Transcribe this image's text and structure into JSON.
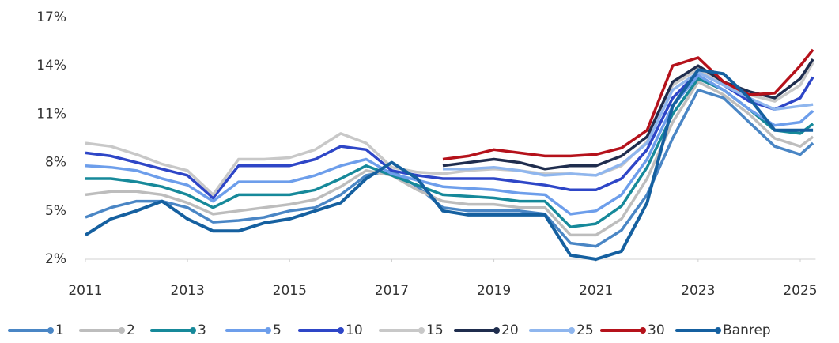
{
  "chart_data": {
    "type": "line",
    "x": [
      2011,
      2011.5,
      2012,
      2012.5,
      2013,
      2013.5,
      2014,
      2014.5,
      2015,
      2015.5,
      2016,
      2016.5,
      2017,
      2017.5,
      2018,
      2018.5,
      2019,
      2019.5,
      2020,
      2020.5,
      2021,
      2021.5,
      2022,
      2022.5,
      2023,
      2023.5,
      2024,
      2024.5,
      2025,
      2025.25
    ],
    "xlim": [
      2011,
      2025.3
    ],
    "xticks": [
      2011,
      2013,
      2015,
      2017,
      2019,
      2021,
      2023,
      2025
    ],
    "ylim": [
      2,
      17
    ],
    "yticks": [
      {
        "value": 2,
        "label": "2%"
      },
      {
        "value": 5,
        "label": "5%"
      },
      {
        "value": 8,
        "label": "8%"
      },
      {
        "value": 11,
        "label": "11%"
      },
      {
        "value": 14,
        "label": "14%"
      },
      {
        "value": 17,
        "label": "17%"
      }
    ],
    "grid": false,
    "legend": "bottom",
    "series": [
      {
        "name": "1",
        "color": "#4a86c5",
        "values": [
          4.6,
          5.2,
          5.6,
          5.6,
          5.2,
          4.3,
          4.4,
          4.6,
          5.0,
          5.2,
          6.0,
          7.2,
          7.5,
          6.5,
          5.2,
          5.0,
          5.0,
          5.0,
          4.8,
          3.0,
          2.8,
          3.8,
          6.0,
          9.5,
          12.5,
          12.0,
          10.5,
          9.0,
          8.5,
          9.2
        ]
      },
      {
        "name": "2",
        "color": "#bdbdbd",
        "values": [
          6.0,
          6.2,
          6.2,
          6.0,
          5.5,
          4.8,
          5.0,
          5.2,
          5.4,
          5.7,
          6.5,
          7.5,
          7.2,
          6.3,
          5.6,
          5.4,
          5.4,
          5.2,
          5.2,
          3.5,
          3.5,
          4.5,
          7.0,
          10.5,
          13.0,
          12.2,
          11.0,
          9.5,
          9.0,
          9.6
        ]
      },
      {
        "name": "3",
        "color": "#16899a",
        "values": [
          7.0,
          7.0,
          6.8,
          6.5,
          6.0,
          5.2,
          6.0,
          6.0,
          6.0,
          6.3,
          7.0,
          7.8,
          7.2,
          6.6,
          6.0,
          5.9,
          5.8,
          5.6,
          5.6,
          4.0,
          4.2,
          5.3,
          7.7,
          11.0,
          13.2,
          12.5,
          11.3,
          10.0,
          9.8,
          10.4
        ]
      },
      {
        "name": "5",
        "color": "#6d9eeb",
        "values": [
          7.8,
          7.7,
          7.5,
          7.0,
          6.6,
          5.6,
          6.8,
          6.8,
          6.8,
          7.2,
          7.8,
          8.2,
          7.3,
          6.9,
          6.5,
          6.4,
          6.3,
          6.1,
          6.0,
          4.8,
          5.0,
          6.0,
          8.2,
          11.5,
          13.4,
          12.5,
          11.3,
          10.3,
          10.5,
          11.2
        ]
      },
      {
        "name": "10",
        "color": "#2e46c7",
        "values": [
          8.6,
          8.4,
          8.0,
          7.6,
          7.2,
          5.8,
          7.8,
          7.8,
          7.8,
          8.2,
          9.0,
          8.8,
          7.5,
          7.2,
          7.0,
          7.0,
          7.0,
          6.8,
          6.6,
          6.3,
          6.3,
          7.0,
          8.8,
          12.0,
          13.6,
          12.8,
          11.8,
          11.3,
          12.0,
          13.3
        ]
      },
      {
        "name": "15",
        "color": "#c8c8c8",
        "values": [
          9.2,
          9.0,
          8.5,
          7.9,
          7.5,
          6.0,
          8.2,
          8.2,
          8.3,
          8.8,
          9.8,
          9.2,
          7.7,
          7.4,
          7.3,
          7.5,
          7.6,
          7.5,
          7.3,
          7.3,
          7.2,
          7.8,
          9.3,
          12.8,
          13.8,
          13.0,
          12.2,
          11.8,
          12.8,
          14.2
        ]
      },
      {
        "name": "20",
        "color": "#1f2d4e",
        "values": [
          null,
          null,
          null,
          null,
          null,
          null,
          null,
          null,
          null,
          null,
          null,
          null,
          null,
          null,
          7.8,
          8.0,
          8.2,
          8.0,
          7.6,
          7.8,
          7.8,
          8.4,
          9.6,
          13.0,
          14.0,
          13.0,
          12.4,
          12.0,
          13.2,
          14.4
        ]
      },
      {
        "name": "25",
        "color": "#8fb6ee",
        "values": [
          null,
          null,
          null,
          null,
          null,
          null,
          null,
          null,
          null,
          null,
          null,
          null,
          null,
          null,
          7.6,
          7.6,
          7.7,
          7.5,
          7.2,
          7.3,
          7.2,
          7.9,
          9.2,
          12.5,
          13.6,
          12.8,
          12.0,
          11.3,
          11.5,
          11.6
        ]
      },
      {
        "name": "30",
        "color": "#b5121b",
        "values": [
          null,
          null,
          null,
          null,
          null,
          null,
          null,
          null,
          null,
          null,
          null,
          null,
          null,
          null,
          8.2,
          8.4,
          8.8,
          8.6,
          8.4,
          8.4,
          8.5,
          8.9,
          10.0,
          14.0,
          14.5,
          13.0,
          12.2,
          12.3,
          14.0,
          15.0
        ]
      },
      {
        "name": "Banrep",
        "color": "#1560a0",
        "values": [
          3.5,
          4.5,
          5.0,
          5.6,
          4.5,
          3.75,
          3.75,
          4.25,
          4.5,
          5.0,
          5.5,
          7.0,
          8.0,
          7.0,
          5.0,
          4.75,
          4.75,
          4.75,
          4.75,
          2.25,
          2.0,
          2.5,
          5.5,
          11.5,
          13.75,
          13.5,
          12.0,
          10.0,
          10.0,
          10.0
        ]
      }
    ]
  }
}
